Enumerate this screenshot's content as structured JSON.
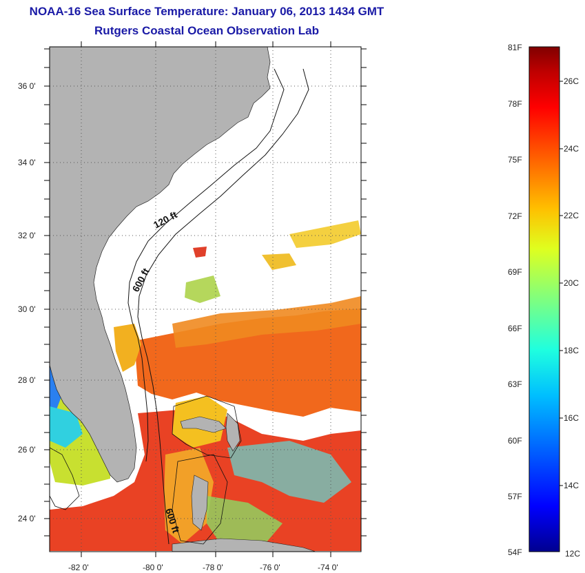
{
  "header": {
    "title": "NOAA-16 Sea Surface Temperature:  January 06, 2013 1434 GMT",
    "subtitle": "Rutgers Coastal Ocean Observation Lab"
  },
  "map": {
    "lat_labels": [
      "36 0'",
      "34 0'",
      "32 0'",
      "30 0'",
      "28 0'",
      "26 0'",
      "24 0'"
    ],
    "lon_labels": [
      "-82 0'",
      "-80 0'",
      "-78 0'",
      "-76 0'",
      "-74 0'"
    ],
    "contours": {
      "shelf": "120 ft",
      "slope": "600 ft",
      "slope_south": "600 ft"
    },
    "colors": {
      "land": "#b3b3b3",
      "ocean": "#ffffff",
      "frame": "#000000",
      "grid": "#555555"
    }
  },
  "colorbar": {
    "fahrenheit": [
      "81F",
      "78F",
      "75F",
      "72F",
      "69F",
      "66F",
      "63F",
      "60F",
      "57F",
      "54F"
    ],
    "celsius": [
      "26C",
      "24C",
      "22C",
      "20C",
      "18C",
      "16C",
      "14C",
      "12C"
    ],
    "scale": [
      "#00008f",
      "#0000ff",
      "#0060ff",
      "#00bfff",
      "#1fffdf",
      "#7fff7f",
      "#dfff1f",
      "#ffbf00",
      "#ff6000",
      "#ff0000",
      "#bf0000",
      "#800000"
    ]
  }
}
